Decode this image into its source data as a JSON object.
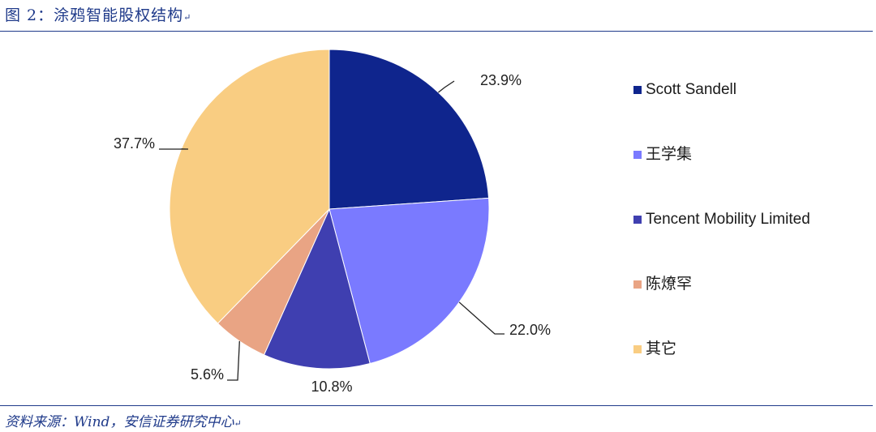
{
  "figure": {
    "title": "图 2：涂鸦智能股权结构",
    "source": "资料来源：Wind，安信证券研究中心"
  },
  "chart_data": {
    "type": "pie",
    "labels": [
      "Scott Sandell",
      "王学集",
      "Tencent Mobility Limited",
      "陈燎罕",
      "其它"
    ],
    "values": [
      23.9,
      22.0,
      10.8,
      5.6,
      37.7
    ],
    "value_labels": [
      "23.9%",
      "22.0%",
      "10.8%",
      "5.6%",
      "37.7%"
    ],
    "colors": [
      "#0f258d",
      "#7a7aff",
      "#3f3fb0",
      "#e9a484",
      "#f9cd82"
    ],
    "legend_position": "right",
    "start_angle": "12 o'clock, clockwise"
  }
}
